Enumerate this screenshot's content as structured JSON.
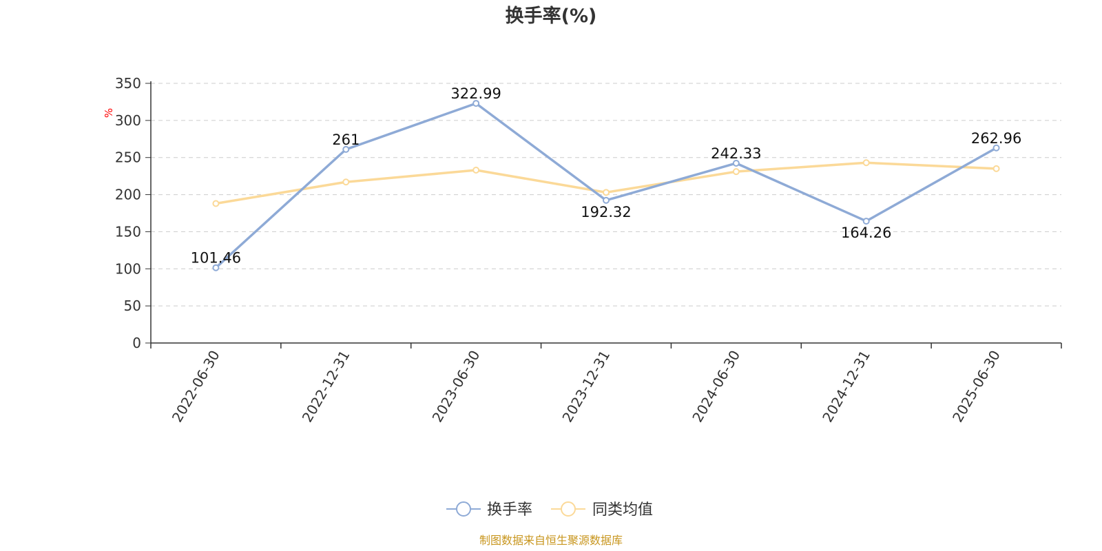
{
  "chart_data": {
    "type": "line",
    "title": "换手率(%)",
    "ylabel": "%",
    "xlabel": "",
    "categories": [
      "2022-06-30",
      "2022-12-31",
      "2023-06-30",
      "2023-12-31",
      "2024-06-30",
      "2024-12-31",
      "2025-06-30"
    ],
    "y_ticks": [
      0,
      50,
      100,
      150,
      200,
      250,
      300,
      350
    ],
    "ylim": [
      0,
      350
    ],
    "grid": true,
    "legend_position": "bottom-center",
    "series": [
      {
        "name": "换手率",
        "color": "#8eaad6",
        "values": [
          101.46,
          261,
          322.99,
          192.32,
          242.33,
          164.26,
          262.96
        ],
        "labels": [
          "101.46",
          "261",
          "322.99",
          "192.32",
          "242.33",
          "164.26",
          "262.96"
        ]
      },
      {
        "name": "同类均值",
        "color": "#fbd998",
        "values": [
          188,
          217,
          233,
          203,
          231,
          243,
          235
        ]
      }
    ]
  },
  "source": {
    "text": "制图数据来自恒生聚源数据库",
    "color": "#c8961e"
  }
}
